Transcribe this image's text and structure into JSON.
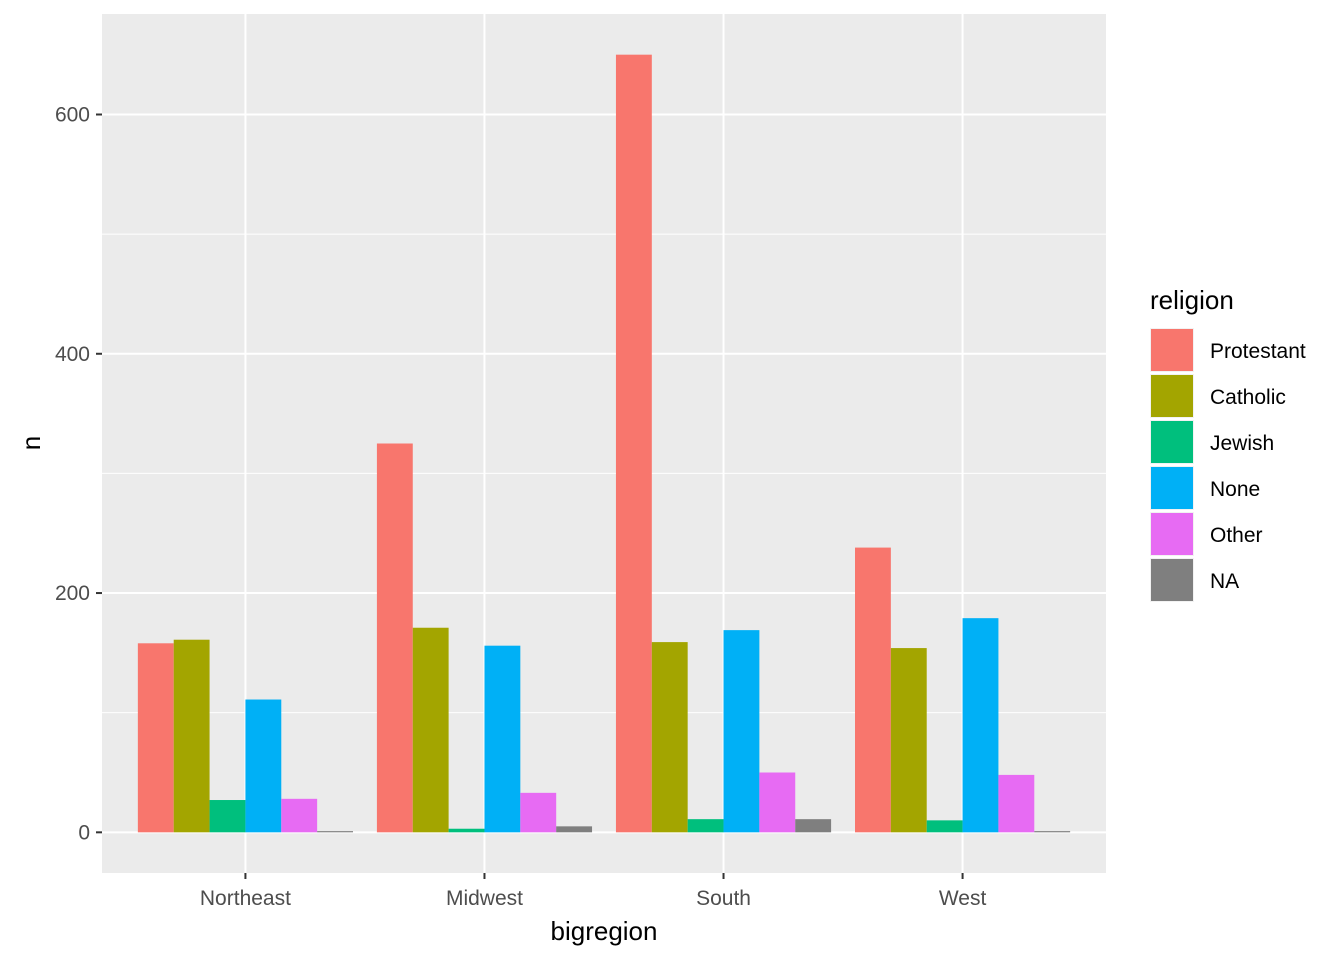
{
  "chart_data": {
    "type": "bar",
    "xlabel": "bigregion",
    "ylabel": "n",
    "categories": [
      "Northeast",
      "Midwest",
      "South",
      "West"
    ],
    "ylim": [
      -34,
      684
    ],
    "yticks": [
      0,
      200,
      400,
      600
    ],
    "grid": true,
    "legend_position": "right",
    "legend_title": "religion",
    "series": [
      {
        "name": "Protestant",
        "color": "#F8766D",
        "values": [
          158,
          325,
          650,
          238
        ]
      },
      {
        "name": "Catholic",
        "color": "#A3A500",
        "values": [
          161,
          171,
          159,
          154
        ]
      },
      {
        "name": "Jewish",
        "color": "#00BF7D",
        "values": [
          27,
          3,
          11,
          10
        ]
      },
      {
        "name": "None",
        "color": "#00B0F6",
        "values": [
          111,
          156,
          169,
          179
        ]
      },
      {
        "name": "Other",
        "color": "#E76BF3",
        "values": [
          28,
          33,
          50,
          48
        ]
      },
      {
        "name": "NA",
        "color": "#7F7F7F",
        "values": [
          1,
          5,
          11,
          1
        ]
      }
    ]
  }
}
